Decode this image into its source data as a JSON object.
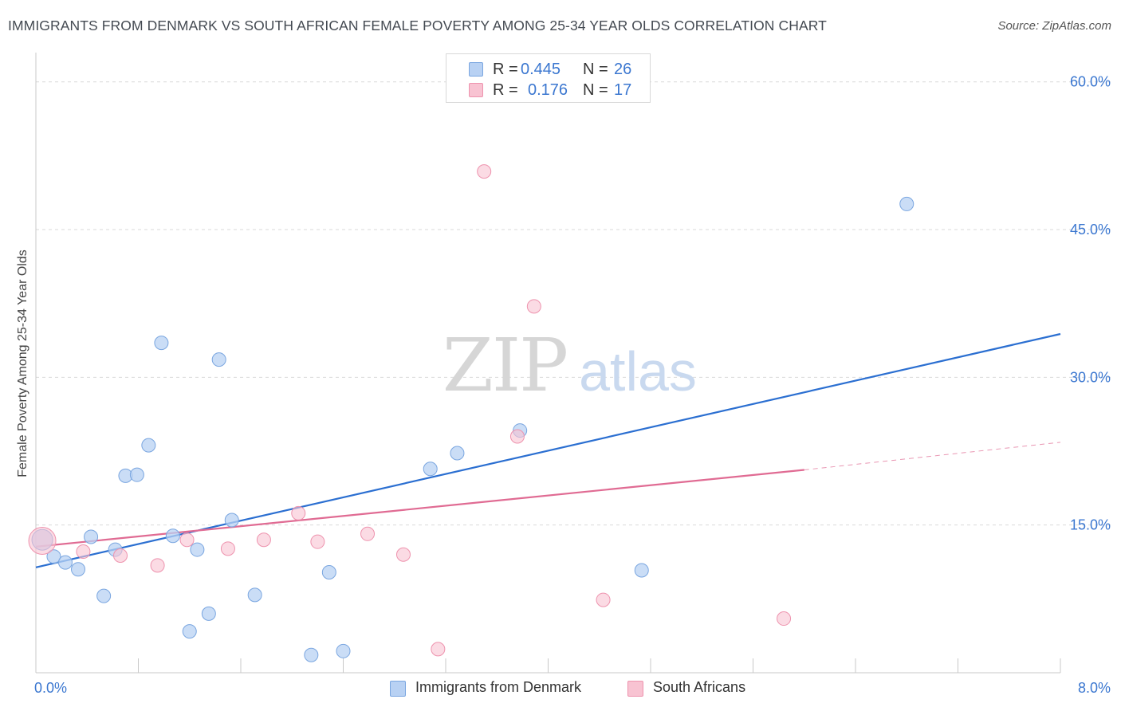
{
  "title": "IMMIGRANTS FROM DENMARK VS SOUTH AFRICAN FEMALE POVERTY AMONG 25-34 YEAR OLDS CORRELATION CHART",
  "source": "Source: ZipAtlas.com",
  "watermark": {
    "zip": "ZIP",
    "atlas": "atlas"
  },
  "legend_top": {
    "rows": [
      {
        "r_label": "R =",
        "r_value": "0.445",
        "n_label": "N =",
        "n_value": "26"
      },
      {
        "r_label": "R =",
        "r_value": "0.176",
        "n_label": "N =",
        "n_value": "17"
      }
    ]
  },
  "legend_bottom": {
    "items": [
      {
        "label": "Immigrants from Denmark"
      },
      {
        "label": "South Africans"
      }
    ]
  },
  "colors": {
    "blue_fill": "#b8d1f3",
    "blue_stroke": "#7aa6e0",
    "blue_line": "#2b6fd1",
    "pink_fill": "#f8c3d2",
    "pink_stroke": "#ee93ae",
    "pink_line": "#e06b93",
    "axis_text": "#3b77d0",
    "grid": "#d9d9d9"
  },
  "chart_data": {
    "type": "scatter",
    "title": "IMMIGRANTS FROM DENMARK VS SOUTH AFRICAN FEMALE POVERTY AMONG 25-34 YEAR OLDS CORRELATION CHART",
    "xlabel": "",
    "ylabel": "Female Poverty Among 25-34 Year Olds",
    "xlim": [
      0,
      8
    ],
    "ylim": [
      0,
      62
    ],
    "x_ticks": [
      "0.0%",
      "8.0%"
    ],
    "y_ticks": [
      {
        "value": 15,
        "label": "15.0%"
      },
      {
        "value": 30,
        "label": "30.0%"
      },
      {
        "value": 45,
        "label": "45.0%"
      },
      {
        "value": 60,
        "label": "60.0%"
      }
    ],
    "grid": true,
    "legend_position": "top-center",
    "series": [
      {
        "name": "Immigrants from Denmark",
        "color": "#b8d1f3",
        "points": [
          {
            "x": 0.05,
            "y": 13.5
          },
          {
            "x": 0.14,
            "y": 11.8
          },
          {
            "x": 0.23,
            "y": 11.2
          },
          {
            "x": 0.33,
            "y": 10.5
          },
          {
            "x": 0.43,
            "y": 13.8
          },
          {
            "x": 0.53,
            "y": 7.8
          },
          {
            "x": 0.62,
            "y": 12.5
          },
          {
            "x": 0.7,
            "y": 20.0
          },
          {
            "x": 0.79,
            "y": 20.1
          },
          {
            "x": 0.88,
            "y": 23.1
          },
          {
            "x": 0.98,
            "y": 33.5
          },
          {
            "x": 1.07,
            "y": 13.9
          },
          {
            "x": 1.2,
            "y": 4.2
          },
          {
            "x": 1.26,
            "y": 12.5
          },
          {
            "x": 1.35,
            "y": 6.0
          },
          {
            "x": 1.43,
            "y": 31.8
          },
          {
            "x": 1.53,
            "y": 15.5
          },
          {
            "x": 1.71,
            "y": 7.9
          },
          {
            "x": 2.15,
            "y": 1.8
          },
          {
            "x": 2.29,
            "y": 10.2
          },
          {
            "x": 2.4,
            "y": 2.2
          },
          {
            "x": 3.08,
            "y": 20.7
          },
          {
            "x": 3.29,
            "y": 22.3
          },
          {
            "x": 3.78,
            "y": 24.6
          },
          {
            "x": 4.73,
            "y": 10.4
          },
          {
            "x": 6.8,
            "y": 47.6
          }
        ],
        "trend": {
          "x0": 0.0,
          "y0": 10.7,
          "x1": 8.0,
          "y1": 34.4
        }
      },
      {
        "name": "South Africans",
        "color": "#f8c3d2",
        "points": [
          {
            "x": 0.05,
            "y": 13.4
          },
          {
            "x": 0.37,
            "y": 12.3
          },
          {
            "x": 0.66,
            "y": 11.9
          },
          {
            "x": 0.95,
            "y": 10.9
          },
          {
            "x": 1.18,
            "y": 13.5
          },
          {
            "x": 1.5,
            "y": 12.6
          },
          {
            "x": 1.78,
            "y": 13.5
          },
          {
            "x": 2.05,
            "y": 16.2
          },
          {
            "x": 2.2,
            "y": 13.3
          },
          {
            "x": 2.59,
            "y": 14.1
          },
          {
            "x": 2.87,
            "y": 12.0
          },
          {
            "x": 3.14,
            "y": 2.4
          },
          {
            "x": 3.5,
            "y": 50.9
          },
          {
            "x": 3.76,
            "y": 24.0
          },
          {
            "x": 3.89,
            "y": 37.2
          },
          {
            "x": 4.43,
            "y": 7.4
          },
          {
            "x": 5.84,
            "y": 5.5
          }
        ],
        "trend": {
          "x0": 0.0,
          "y0": 12.8,
          "x1": 6.0,
          "y1": 20.6,
          "dashed_to_x": 8.0,
          "dashed_to_y": 23.4
        }
      }
    ]
  }
}
